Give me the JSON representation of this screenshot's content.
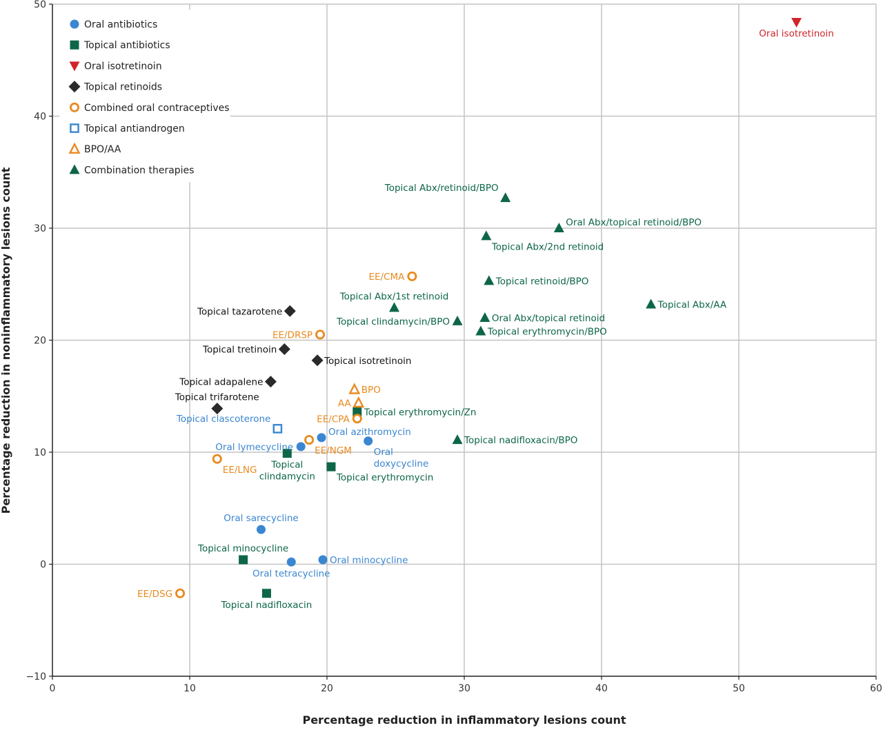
{
  "chart_data": {
    "type": "scatter",
    "xlabel": "Percentage reduction in inflammatory lesions count",
    "ylabel": "Percentage reduction in noninflammatory lesions count",
    "xlim": [
      0,
      60
    ],
    "ylim": [
      -10,
      50
    ],
    "x_ticks": [
      0,
      10,
      20,
      30,
      40,
      50,
      60
    ],
    "y_ticks": [
      -10,
      0,
      10,
      20,
      30,
      40,
      50
    ],
    "grid": true,
    "legend_position": "top-left",
    "colors": {
      "oral_antibiotics": "#3a86d0",
      "topical_antibiotics": "#0d6647",
      "oral_isotretinoin": "#d0242c",
      "topical_retinoids": "#2a2a2a",
      "combined_oral_contraceptives": "#e88a1e",
      "topical_antiandrogen": "#3a86d0",
      "bpo_aa": "#e88a1e",
      "combination_therapies": "#0d6647"
    },
    "series": [
      {
        "key": "oral_antibiotics",
        "name": "Oral antibiotics",
        "marker": "filled-circle",
        "points": [
          {
            "x": 23.0,
            "y": 11.0,
            "label": "Oral\ndoxycycline",
            "pos": "below-right"
          },
          {
            "x": 19.6,
            "y": 11.3,
            "label": "Oral azithromycin",
            "pos": "above-right"
          },
          {
            "x": 18.1,
            "y": 10.5,
            "label": "Oral lymecycline",
            "pos": "left"
          },
          {
            "x": 15.2,
            "y": 3.1,
            "label": "Oral sarecycline",
            "pos": "above"
          },
          {
            "x": 19.7,
            "y": 0.4,
            "label": "Oral minocycline",
            "pos": "right"
          },
          {
            "x": 17.4,
            "y": 0.2,
            "label": "Oral tetracycline",
            "pos": "below"
          }
        ]
      },
      {
        "key": "topical_antibiotics",
        "name": "Topical antibiotics",
        "marker": "filled-square",
        "points": [
          {
            "x": 22.2,
            "y": 13.6,
            "label": "Topical erythromycin/Zn",
            "pos": "right"
          },
          {
            "x": 17.1,
            "y": 9.9,
            "label": "Topical\nclindamycin",
            "pos": "below"
          },
          {
            "x": 20.3,
            "y": 8.7,
            "label": "Topical erythromycin",
            "pos": "below-right"
          },
          {
            "x": 13.9,
            "y": 0.4,
            "label": "Topical minocycline",
            "pos": "above"
          },
          {
            "x": 15.6,
            "y": -2.6,
            "label": "Topical nadifloxacin",
            "pos": "below"
          }
        ]
      },
      {
        "key": "oral_isotretinoin",
        "name": "Oral isotretinoin",
        "marker": "filled-triangle-down",
        "points": [
          {
            "x": 54.2,
            "y": 48.4,
            "label": "Oral isotretinoin",
            "pos": "below"
          }
        ]
      },
      {
        "key": "topical_retinoids",
        "name": "Topical retinoids",
        "marker": "filled-diamond",
        "points": [
          {
            "x": 17.3,
            "y": 22.6,
            "label": "Topical tazarotene",
            "pos": "left"
          },
          {
            "x": 16.9,
            "y": 19.2,
            "label": "Topical tretinoin",
            "pos": "left"
          },
          {
            "x": 19.3,
            "y": 18.2,
            "label": "Topical isotretinoin",
            "pos": "right"
          },
          {
            "x": 15.9,
            "y": 16.3,
            "label": "Topical adapalene",
            "pos": "left"
          },
          {
            "x": 12.0,
            "y": 13.9,
            "label": "Topical trifarotene",
            "pos": "above"
          }
        ]
      },
      {
        "key": "combined_oral_contraceptives",
        "name": "Combined oral contraceptives",
        "marker": "open-circle",
        "points": [
          {
            "x": 26.2,
            "y": 25.7,
            "label": "EE/CMA",
            "pos": "left"
          },
          {
            "x": 19.5,
            "y": 20.5,
            "label": "EE/DRSP",
            "pos": "left"
          },
          {
            "x": 22.2,
            "y": 13.0,
            "label": "EE/CPA",
            "pos": "left"
          },
          {
            "x": 18.7,
            "y": 11.1,
            "label": "EE/NGM",
            "pos": "below-right"
          },
          {
            "x": 12.0,
            "y": 9.4,
            "label": "EE/LNG",
            "pos": "below-right"
          },
          {
            "x": 9.3,
            "y": -2.6,
            "label": "EE/DSG",
            "pos": "left"
          }
        ]
      },
      {
        "key": "topical_antiandrogen",
        "name": "Topical antiandrogen",
        "marker": "open-square",
        "points": [
          {
            "x": 16.4,
            "y": 12.1,
            "label": "Topical clascoterone",
            "pos": "above-left"
          }
        ]
      },
      {
        "key": "bpo_aa",
        "name": "BPO/AA",
        "marker": "open-triangle",
        "points": [
          {
            "x": 22.0,
            "y": 15.6,
            "label": "BPO",
            "pos": "right"
          },
          {
            "x": 22.3,
            "y": 14.4,
            "label": "AA",
            "pos": "left"
          }
        ]
      },
      {
        "key": "combination_therapies",
        "name": "Combination therapies",
        "marker": "filled-triangle",
        "points": [
          {
            "x": 33.0,
            "y": 32.7,
            "label": "Topical Abx/retinoid/BPO",
            "pos": "above-left"
          },
          {
            "x": 36.9,
            "y": 30.0,
            "label": "Oral Abx/topical retinoid/BPO",
            "pos": "above-right"
          },
          {
            "x": 31.6,
            "y": 29.3,
            "label": "Topical Abx/2nd retinoid",
            "pos": "below-right"
          },
          {
            "x": 31.8,
            "y": 25.3,
            "label": "Topical retinoid/BPO",
            "pos": "right"
          },
          {
            "x": 43.6,
            "y": 23.2,
            "label": "Topical Abx/AA",
            "pos": "right"
          },
          {
            "x": 24.9,
            "y": 22.9,
            "label": "Topical Abx/1st retinoid",
            "pos": "above"
          },
          {
            "x": 29.5,
            "y": 21.7,
            "label": "Topical clindamycin/BPO",
            "pos": "left"
          },
          {
            "x": 31.5,
            "y": 22.0,
            "label": "Oral Abx/topical retinoid",
            "pos": "right"
          },
          {
            "x": 31.2,
            "y": 20.8,
            "label": "Topical erythromycin/BPO",
            "pos": "right"
          },
          {
            "x": 29.5,
            "y": 11.1,
            "label": "Topical nadifloxacin/BPO",
            "pos": "right"
          }
        ]
      }
    ]
  }
}
